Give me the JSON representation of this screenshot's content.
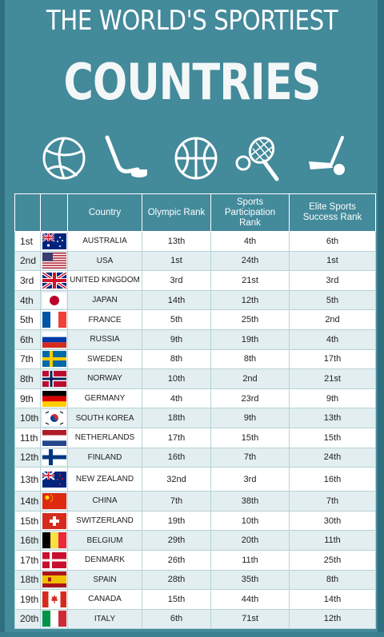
{
  "title": {
    "line1": "THE WORLD'S SPORTIEST",
    "line2": "COUNTRIES"
  },
  "icons": [
    "volleyball-icon",
    "hockey-stick-puck-icon",
    "basketball-icon",
    "tennis-racket-ball-icon",
    "golf-club-ball-icon"
  ],
  "colors": {
    "background": "#438a9b",
    "row_odd": "#ffffff",
    "row_even": "#e2eef0"
  },
  "table": {
    "headers": {
      "rank": "",
      "flag": "",
      "country": "Country",
      "olympic": "Olympic Rank",
      "participation": "Sports Participation Rank",
      "elite": "Elite Sports Success Rank"
    },
    "rows": [
      {
        "rank": "1st",
        "flag": "australia-flag-icon",
        "country": "AUSTRALIA",
        "olympic": "13th",
        "participation": "4th",
        "elite": "6th"
      },
      {
        "rank": "2nd",
        "flag": "usa-flag-icon",
        "country": "USA",
        "olympic": "1st",
        "participation": "24th",
        "elite": "1st"
      },
      {
        "rank": "3rd",
        "flag": "uk-flag-icon",
        "country": "UNITED KINGDOM",
        "olympic": "3rd",
        "participation": "21st",
        "elite": "3rd"
      },
      {
        "rank": "4th",
        "flag": "japan-flag-icon",
        "country": "JAPAN",
        "olympic": "14th",
        "participation": "12th",
        "elite": "5th"
      },
      {
        "rank": "5th",
        "flag": "france-flag-icon",
        "country": "FRANCE",
        "olympic": "5th",
        "participation": "25th",
        "elite": "2nd"
      },
      {
        "rank": "6th",
        "flag": "russia-flag-icon",
        "country": "RUSSIA",
        "olympic": "9th",
        "participation": "19th",
        "elite": "4th"
      },
      {
        "rank": "7th",
        "flag": "sweden-flag-icon",
        "country": "SWEDEN",
        "olympic": "8th",
        "participation": "8th",
        "elite": "17th"
      },
      {
        "rank": "8th",
        "flag": "norway-flag-icon",
        "country": "NORWAY",
        "olympic": "10th",
        "participation": "2nd",
        "elite": "21st"
      },
      {
        "rank": "9th",
        "flag": "germany-flag-icon",
        "country": "GERMANY",
        "olympic": "4th",
        "participation": "23rd",
        "elite": "9th"
      },
      {
        "rank": "10th",
        "flag": "south-korea-flag-icon",
        "country": "SOUTH KOREA",
        "olympic": "18th",
        "participation": "9th",
        "elite": "13th"
      },
      {
        "rank": "11th",
        "flag": "netherlands-flag-icon",
        "country": "NETHERLANDS",
        "olympic": "17th",
        "participation": "15th",
        "elite": "15th"
      },
      {
        "rank": "12th",
        "flag": "finland-flag-icon",
        "country": "FINLAND",
        "olympic": "16th",
        "participation": "7th",
        "elite": "24th"
      },
      {
        "rank": "13th",
        "flag": "new-zealand-flag-icon",
        "country": "NEW ZEALAND",
        "olympic": "32nd",
        "participation": "3rd",
        "elite": "16th"
      },
      {
        "rank": "14th",
        "flag": "china-flag-icon",
        "country": "CHINA",
        "olympic": "7th",
        "participation": "38th",
        "elite": "7th"
      },
      {
        "rank": "15th",
        "flag": "switzerland-flag-icon",
        "country": "SWITZERLAND",
        "olympic": "19th",
        "participation": "10th",
        "elite": "30th"
      },
      {
        "rank": "16th",
        "flag": "belgium-flag-icon",
        "country": "BELGIUM",
        "olympic": "29th",
        "participation": "20th",
        "elite": "11th"
      },
      {
        "rank": "17th",
        "flag": "denmark-flag-icon",
        "country": "DENMARK",
        "olympic": "26th",
        "participation": "11th",
        "elite": "25th"
      },
      {
        "rank": "18th",
        "flag": "spain-flag-icon",
        "country": "SPAIN",
        "olympic": "28th",
        "participation": "35th",
        "elite": "8th"
      },
      {
        "rank": "19th",
        "flag": "canada-flag-icon",
        "country": "CANADA",
        "olympic": "15th",
        "participation": "44th",
        "elite": "14th"
      },
      {
        "rank": "20th",
        "flag": "italy-flag-icon",
        "country": "ITALY",
        "olympic": "6th",
        "participation": "71st",
        "elite": "12th"
      }
    ]
  }
}
